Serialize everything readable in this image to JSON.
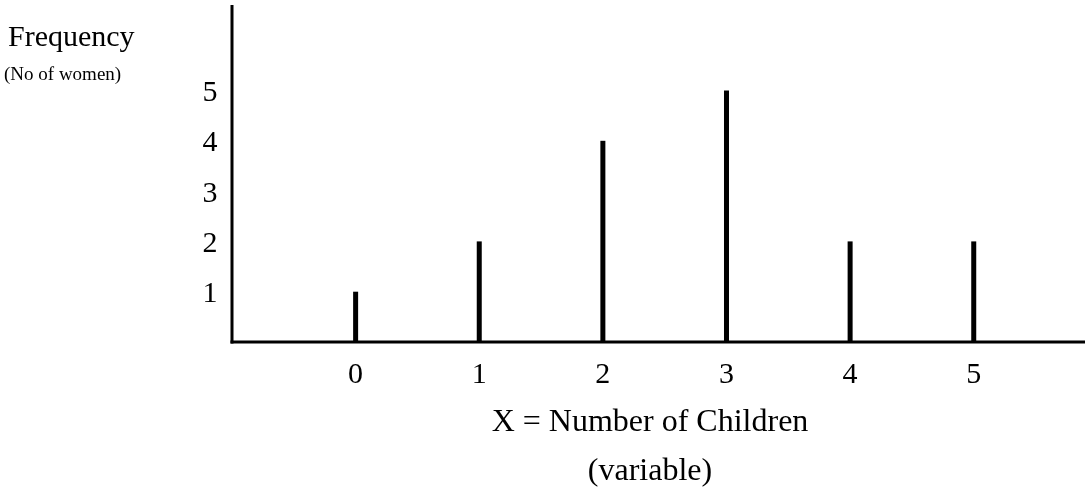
{
  "chart_data": {
    "type": "bar",
    "x": [
      0,
      1,
      2,
      3,
      4,
      5
    ],
    "values": [
      1,
      2,
      4,
      5,
      2,
      2
    ],
    "color": "#000000",
    "xlim": [
      -1,
      5.9
    ],
    "xticks": [
      0,
      1,
      2,
      3,
      4,
      5
    ],
    "ylim": [
      0,
      6.7
    ],
    "yticks": [
      1,
      2,
      3,
      4,
      5
    ],
    "ylabel": "Frequency\n(No of women)",
    "xlabel": "X = Number of Children\n(variable)",
    "grid": false
  }
}
